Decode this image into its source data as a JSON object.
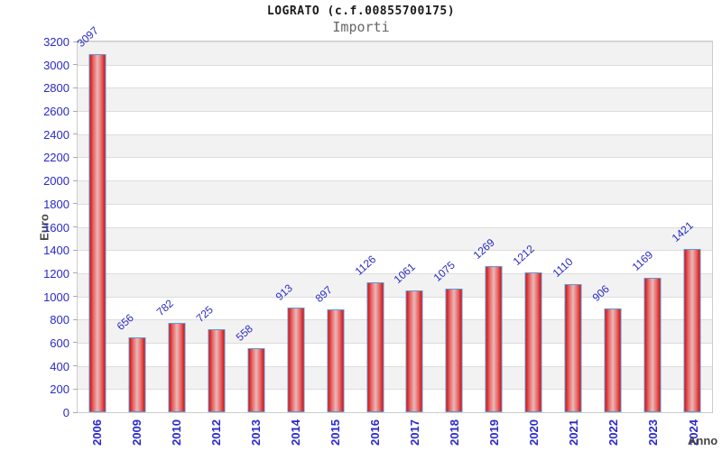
{
  "header": {
    "title": "LOGRATO (c.f.00855700175)",
    "subtitle": "Importi"
  },
  "chart_data": {
    "type": "bar",
    "title": "LOGRATO (c.f.00855700175)",
    "subtitle": "Importi",
    "xlabel": "Anno",
    "ylabel": "Euro",
    "categories": [
      "2006",
      "2009",
      "2010",
      "2012",
      "2013",
      "2014",
      "2015",
      "2016",
      "2017",
      "2018",
      "2019",
      "2020",
      "2021",
      "2022",
      "2023",
      "2024"
    ],
    "values": [
      3097,
      656,
      782,
      725,
      558,
      913,
      897,
      1126,
      1061,
      1075,
      1269,
      1212,
      1110,
      906,
      1169,
      1421
    ],
    "ylim": [
      0,
      3200
    ],
    "ytick_step": 200,
    "grid": "horizontal-stripes",
    "legend_position": "none",
    "colors": {
      "bar_edge": "#d31111",
      "bar_center": "#e8b9b9",
      "bar_border": "#5b9bd5",
      "tick_label": "#2929cc",
      "value_label": "#2b2bc4",
      "axis_title": "#444444",
      "stripe": "#f2f2f2",
      "grid_line": "#dddddd",
      "plot_border": "#cccccc"
    }
  }
}
